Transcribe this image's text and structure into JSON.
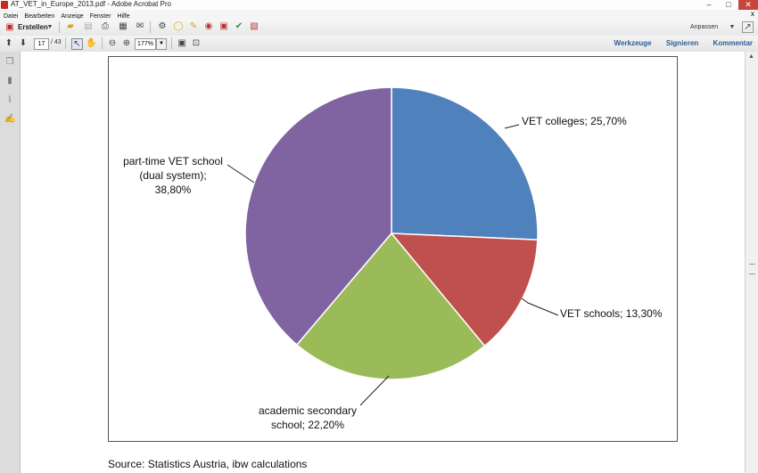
{
  "window": {
    "title": "AT_VET_in_Europe_2013.pdf - Adobe Acrobat Pro",
    "minimize": "–",
    "maximize": "□",
    "close": "✕"
  },
  "menu": {
    "items": [
      "Datei",
      "Bearbeiten",
      "Anzeige",
      "Fenster",
      "Hilfe"
    ],
    "close": "x"
  },
  "toolbar": {
    "create_label": "Erstellen",
    "customize_label": "Anpassen",
    "current_page": "17",
    "total_pages": "/ 43",
    "zoom": "177%"
  },
  "right_links": {
    "tools": "Werkzeuge",
    "sign": "Signieren",
    "comment": "Kommentar"
  },
  "icons": [
    "file-open-icon",
    "save-icon",
    "print-icon",
    "settings-icon",
    "email-icon",
    "gear-icon",
    "comment-icon",
    "highlight-icon",
    "stamp-icon",
    "attach-icon",
    "prev-page-icon",
    "next-page-icon",
    "select-tool-icon",
    "hand-tool-icon",
    "zoom-out-icon",
    "zoom-in-icon",
    "fit-page-icon",
    "fit-width-icon",
    "pages-panel-icon",
    "bookmarks-panel-icon",
    "attachments-panel-icon",
    "signatures-panel-icon"
  ],
  "document": {
    "source_note": "Source: Statistics Austria, ibw calculations"
  },
  "chart_data": {
    "type": "pie",
    "slices": [
      {
        "label_lines": [
          "VET colleges; 25,70%"
        ],
        "value": 25.7,
        "color": "#4f81bd"
      },
      {
        "label_lines": [
          "VET schools; 13,30%"
        ],
        "value": 13.3,
        "color": "#c0504d"
      },
      {
        "label_lines": [
          "academic secondary",
          "school; 22,20%"
        ],
        "value": 22.2,
        "color": "#9bbb59"
      },
      {
        "label_lines": [
          "part-time VET school",
          "(dual system);",
          "38,80%"
        ],
        "value": 38.8,
        "color": "#8064a2"
      }
    ],
    "start_angle_deg": 0,
    "direction": "clockwise"
  }
}
